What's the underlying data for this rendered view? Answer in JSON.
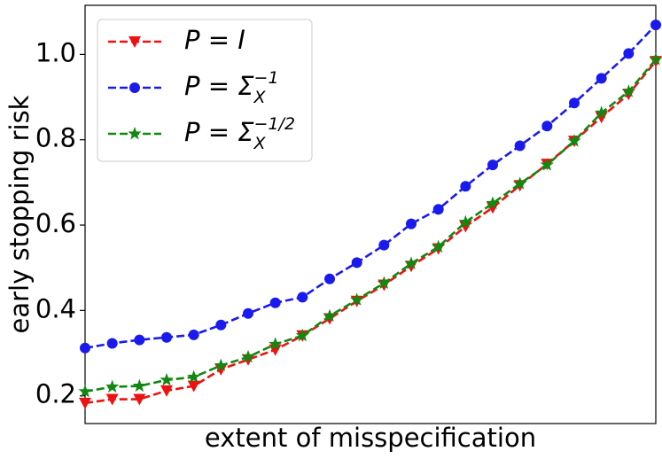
{
  "chart_data": {
    "type": "line",
    "xlabel": "extent of misspecification",
    "ylabel": "early stopping risk",
    "ylim": [
      0.135,
      1.115
    ],
    "yticks": [
      0.2,
      0.4,
      0.6,
      0.8,
      {
        "value": 1.0,
        "label": "1.0"
      }
    ],
    "legend": "upper left",
    "series": [
      {
        "name": "P = I",
        "marker": "triangle-down",
        "color": "#ee1111",
        "values": [
          0.183,
          0.192,
          0.192,
          0.212,
          0.223,
          0.262,
          0.285,
          0.308,
          0.341,
          0.381,
          0.422,
          0.46,
          0.504,
          0.545,
          0.597,
          0.641,
          0.693,
          0.743,
          0.797,
          0.853,
          0.907,
          0.984
        ]
      },
      {
        "name": "P = Σ",
        "name_sub": "X",
        "name_sup": "−1",
        "marker": "circle",
        "color": "#1a1aee",
        "values": [
          0.312,
          0.323,
          0.331,
          0.337,
          0.343,
          0.366,
          0.393,
          0.418,
          0.431,
          0.474,
          0.512,
          0.553,
          0.603,
          0.637,
          0.691,
          0.741,
          0.786,
          0.832,
          0.886,
          0.944,
          1.002,
          1.069
        ]
      },
      {
        "name": "P = Σ",
        "name_sub": "X",
        "name_sup": "−1/2",
        "marker": "star",
        "color": "#118811",
        "values": [
          0.21,
          0.221,
          0.223,
          0.237,
          0.244,
          0.271,
          0.291,
          0.321,
          0.341,
          0.387,
          0.425,
          0.464,
          0.51,
          0.549,
          0.607,
          0.651,
          0.697,
          0.741,
          0.797,
          0.863,
          0.913,
          0.988
        ]
      }
    ]
  }
}
